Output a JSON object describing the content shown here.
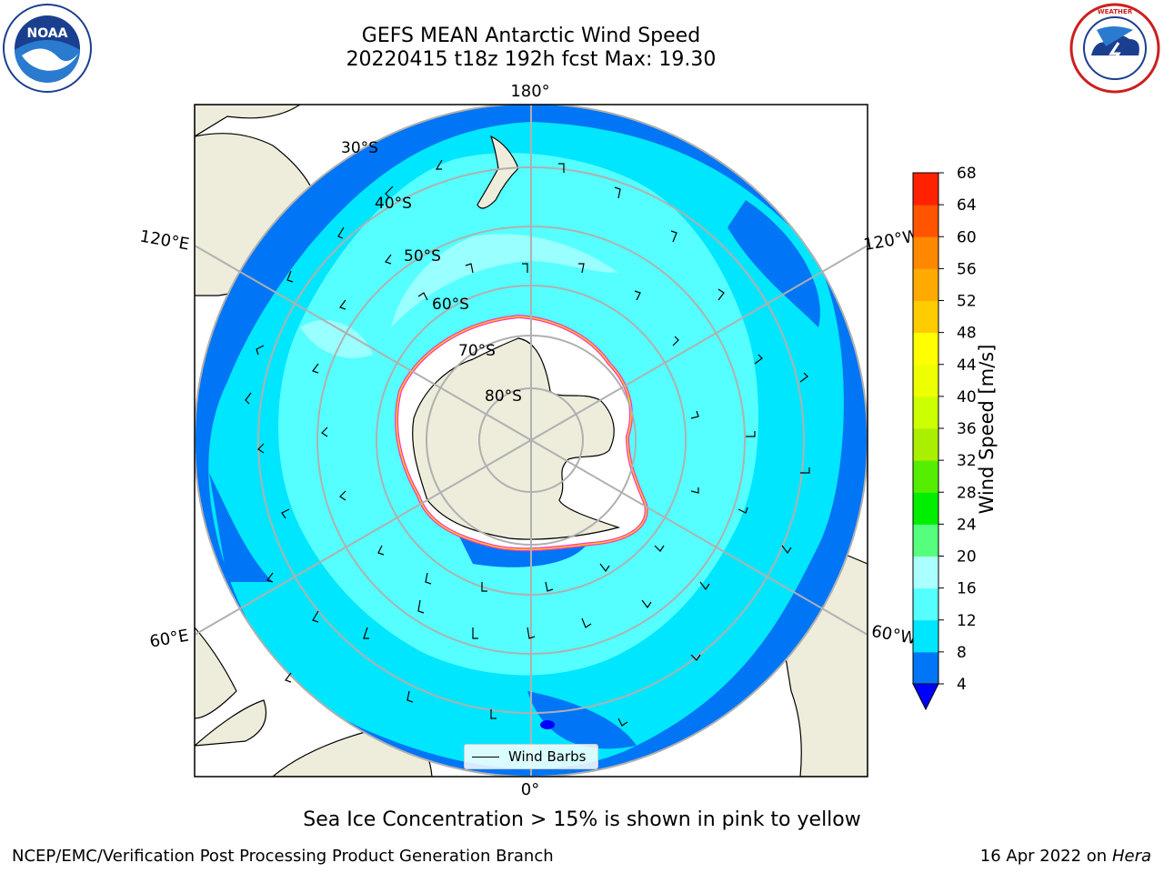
{
  "header": {
    "title_line1": "GEFS MEAN Antarctic Wind Speed",
    "title_line2": "20220415 t18z 192h fcst   Max: 19.30"
  },
  "logos": {
    "left": {
      "text": "NOAA",
      "ring_text": "NATIONAL OCEANIC AND ATMOSPHERIC ADMINISTRATION · U.S. DEPARTMENT OF COMMERCE"
    },
    "right": {
      "ring_text": "NATIONAL WEATHER SERVICE"
    }
  },
  "map": {
    "projection": "south-polar-stereographic",
    "longitude_labels": [
      "180°",
      "120°E",
      "120°W",
      "60°E",
      "60°W",
      "0°"
    ],
    "latitude_labels": [
      "30°S",
      "40°S",
      "50°S",
      "60°S",
      "70°S",
      "80°S"
    ],
    "legend_label": "Wind Barbs",
    "colors": {
      "land": "#eeecdb",
      "ice": "#ffffff",
      "ice_edge": [
        "#ff33cc",
        "#ffcc00"
      ],
      "grid": "#b0b0b0"
    }
  },
  "colorbar": {
    "label": "Wind Speed [m/s]",
    "ticks": [
      4,
      8,
      12,
      16,
      20,
      24,
      28,
      32,
      36,
      40,
      44,
      48,
      52,
      56,
      60,
      64,
      68
    ],
    "colors": [
      "#0075f5",
      "#00e6ff",
      "#55ffff",
      "#aaffff",
      "#55ff7d",
      "#00ee00",
      "#55ee00",
      "#aaee00",
      "#ccff00",
      "#eeff00",
      "#ffff00",
      "#ffcc00",
      "#ffaa00",
      "#ff8800",
      "#ff5500",
      "#ff2200"
    ],
    "under_color": "#0000ff"
  },
  "chart_data": {
    "type": "heatmap",
    "title": "GEFS MEAN Antarctic Wind Speed",
    "subtitle": "20220415 t18z 192h fcst   Max: 19.30",
    "variable": "Wind Speed [m/s]",
    "max": 19.3,
    "colorbar_range": [
      4,
      68
    ],
    "colorbar_step": 4
  },
  "footer": {
    "caption": "Sea Ice Concentration > 15% is shown in pink to yellow",
    "left": "NCEP/EMC/Verification Post Processing Product Generation Branch",
    "date": "16 Apr 2022 on ",
    "host": "Hera"
  }
}
